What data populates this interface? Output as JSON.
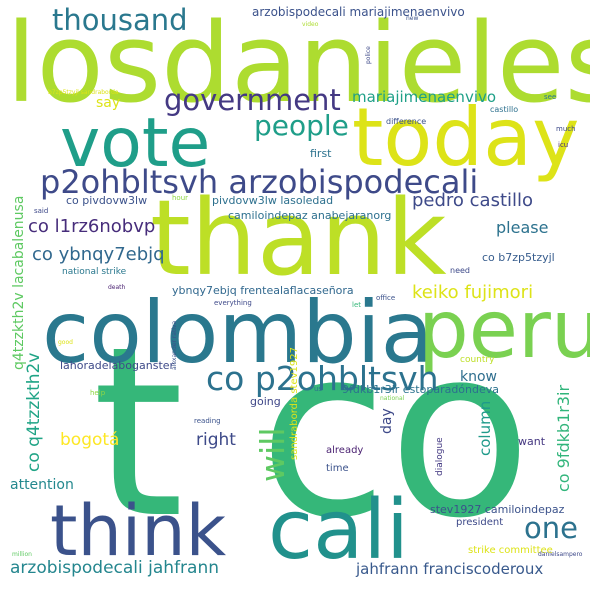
{
  "background": "#ffffff",
  "words": [
    {
      "text": "t co",
      "color": "#35b779"
    },
    {
      "text": "losdanieles",
      "color": "#addc30"
    },
    {
      "text": "thank",
      "color": "#bddf26"
    },
    {
      "text": "colombia",
      "color": "#2a788e"
    },
    {
      "text": "vote",
      "color": "#1f9e89"
    },
    {
      "text": "today",
      "color": "#dde318"
    },
    {
      "text": "peru",
      "color": "#7ad151"
    },
    {
      "text": "cali",
      "color": "#21918c"
    },
    {
      "text": "think",
      "color": "#3b528b"
    },
    {
      "text": "p2ohbltsvh arzobispodecali",
      "color": "#3e4a89"
    },
    {
      "text": "co p2ohbltsvh",
      "color": "#2c728e"
    },
    {
      "text": "government",
      "color": "#443983"
    },
    {
      "text": "thousand",
      "color": "#2a788e"
    },
    {
      "text": "people",
      "color": "#1f9e89"
    },
    {
      "text": "will",
      "color": "#5ec962"
    },
    {
      "text": "one",
      "color": "#2c728e"
    },
    {
      "text": "keiko fujimori",
      "color": "#dde318"
    },
    {
      "text": "co l1rz6nobvp",
      "color": "#472d7b"
    },
    {
      "text": "co ybnqy7ebjq",
      "color": "#31688e"
    },
    {
      "text": "pedro castillo",
      "color": "#3e4a89"
    },
    {
      "text": "arzobispodecali jahfrann",
      "color": "#24868e"
    },
    {
      "text": "jahfrann franciscoderoux",
      "color": "#38598c"
    },
    {
      "text": "mariajimenaenvivo",
      "color": "#1fa088"
    },
    {
      "text": "arzobispodecali mariajimenaenvivo",
      "color": "#3b528b"
    },
    {
      "text": "q4tzzkth2v lacabalenusa",
      "color": "#5ec962"
    },
    {
      "text": "co q4tzzkth2v",
      "color": "#20a486"
    },
    {
      "text": "co 9fdkb1r3ir",
      "color": "#31b57b"
    },
    {
      "text": "please",
      "color": "#2c728e"
    },
    {
      "text": "say",
      "color": "#dde318"
    },
    {
      "text": "right",
      "color": "#3e4a89"
    },
    {
      "text": "bogotá",
      "color": "#fde725"
    },
    {
      "text": "attention",
      "color": "#23888e"
    },
    {
      "text": "know",
      "color": "#2e6e8e"
    },
    {
      "text": "column",
      "color": "#1f9a8a"
    },
    {
      "text": "day",
      "color": "#3e4989"
    },
    {
      "text": "going",
      "color": "#3f4788"
    },
    {
      "text": "co pivdovw3lw",
      "color": "#3b528b"
    },
    {
      "text": "pivdovw3lw lasoledad",
      "color": "#2d708e"
    },
    {
      "text": "camiloindepaz anabejaranorg",
      "color": "#2d708e"
    },
    {
      "text": "ybnqy7ebjq frentealaflacaseñora",
      "color": "#31688e"
    },
    {
      "text": "co b7zp5tzyjl",
      "color": "#365c8d"
    },
    {
      "text": "lahoradelaboganster",
      "color": "#3e4a89"
    },
    {
      "text": "9fdkb1r3ir estoparadóndeva",
      "color": "#2c728e"
    },
    {
      "text": "sandraborda stev1927",
      "color": "#dde318"
    },
    {
      "text": "stev1927 camiloindepaz",
      "color": "#3b528b"
    },
    {
      "text": "first",
      "color": "#2c728e"
    },
    {
      "text": "want",
      "color": "#453781"
    },
    {
      "text": "already",
      "color": "#481f70"
    },
    {
      "text": "time",
      "color": "#3b528b"
    },
    {
      "text": "president",
      "color": "#3e4a89"
    },
    {
      "text": "strike committee",
      "color": "#dde318"
    },
    {
      "text": "national strike",
      "color": "#2a788e"
    },
    {
      "text": "dialogue",
      "color": "#443a83"
    },
    {
      "text": "country",
      "color": "#bddf26"
    },
    {
      "text": "castillo",
      "color": "#2d708e"
    },
    {
      "text": "difference",
      "color": "#3b528b"
    },
    {
      "text": "need",
      "color": "#3e4a89"
    },
    {
      "text": "reading",
      "color": "#3b528b"
    },
    {
      "text": "help",
      "color": "#8fd744"
    },
    {
      "text": "everything",
      "color": "#3e4989"
    },
    {
      "text": "office",
      "color": "#3b528b"
    },
    {
      "text": "let",
      "color": "#35b779"
    },
    {
      "text": "us",
      "color": "#2c728e"
    },
    {
      "text": "see",
      "color": "#2a788e"
    },
    {
      "text": "much",
      "color": "#3e4a89"
    },
    {
      "text": "icu",
      "color": "#472d7b"
    },
    {
      "text": "said",
      "color": "#3e4989"
    },
    {
      "text": "hour",
      "color": "#8fd744"
    },
    {
      "text": "video",
      "color": "#addc30"
    },
    {
      "text": "new",
      "color": "#3b528b"
    },
    {
      "text": "police",
      "color": "#3e4989"
    },
    {
      "text": "death",
      "color": "#481f70"
    },
    {
      "text": "million",
      "color": "#5ec962"
    },
    {
      "text": "good",
      "color": "#dde318"
    },
    {
      "text": "alexander rativa",
      "color": "#3b528b"
    },
    {
      "text": "national",
      "color": "#7ad151"
    },
    {
      "text": "danielsampero",
      "color": "#3e4989"
    },
    {
      "text": "b7zp5tzyjl sandraborda",
      "color": "#dde318"
    }
  ]
}
